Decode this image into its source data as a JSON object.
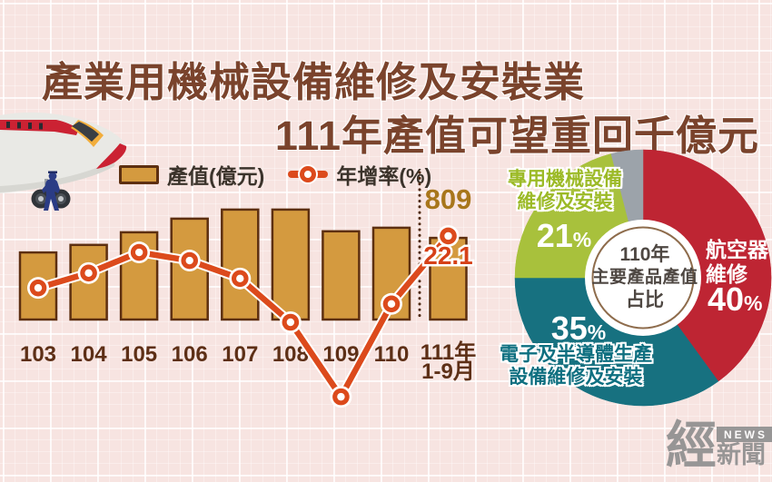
{
  "header": {
    "line1": "產業用機械設備維修及安裝業",
    "line2": "111年產值可望重回千億元"
  },
  "chart_data": [
    {
      "id": "production-trend",
      "type": "bar+line",
      "categories": [
        "103",
        "104",
        "105",
        "106",
        "107",
        "108",
        "109",
        "110",
        "111年 1-9月"
      ],
      "series": [
        {
          "name": "產值(億元)",
          "type": "bar",
          "color": "#D49A3F",
          "border_color": "#5D2F10",
          "values": [
            665,
            740,
            865,
            1000,
            1090,
            1090,
            875,
            910,
            809
          ],
          "visible_label": {
            "index": 8,
            "text": "809",
            "color": "#A8761B"
          }
        },
        {
          "name": "年增率(%)",
          "type": "line",
          "color": "#DC4A1C",
          "values": [
            8.8,
            12.6,
            17.9,
            15.8,
            11.2,
            0,
            -19.1,
            4.7,
            22.1
          ],
          "visible_label": {
            "index": 8,
            "text": "22.1",
            "color": "#D64118"
          }
        }
      ],
      "separator_before_index": 8,
      "axis_label_color": "#5D2F16",
      "note": "Only the 111年1-9月 values (809, 22.1) are printed on the chart; other values are estimated from bar/line heights."
    },
    {
      "id": "product-share",
      "type": "pie",
      "donut": true,
      "center_title_lines": [
        "110年",
        "主要產品產值",
        "占比"
      ],
      "slices": [
        {
          "label": "航空器維修",
          "label_lines": "航空器\n維修",
          "value": 40,
          "color": "#BE2533"
        },
        {
          "label": "電子及半導體生產設備維修及安裝",
          "label_lines": "電子及半導體生產\n設備維修及安裝",
          "value": 35,
          "color": "#177180"
        },
        {
          "label": "專用機械設備維修及安裝",
          "label_lines": "專用機械設備\n維修及安裝",
          "value": 21,
          "color": "#A8C13C"
        },
        {
          "label": "",
          "label_lines": "",
          "value": 4,
          "color": "#9CA3AA"
        }
      ],
      "percent_sign": "%"
    }
  ],
  "watermark": {
    "brand_char": "經",
    "badge": "NEWS",
    "brand_suffix": "新聞"
  },
  "colors": {
    "background": "#F7E4E1",
    "title": "#7A432C",
    "bar_fill": "#D49A3F",
    "bar_border": "#5D2F10",
    "line": "#DC4A1C",
    "pie_red": "#BE2533",
    "pie_teal": "#177180",
    "pie_green": "#A8C13C",
    "pie_gray": "#9CA3AA"
  }
}
